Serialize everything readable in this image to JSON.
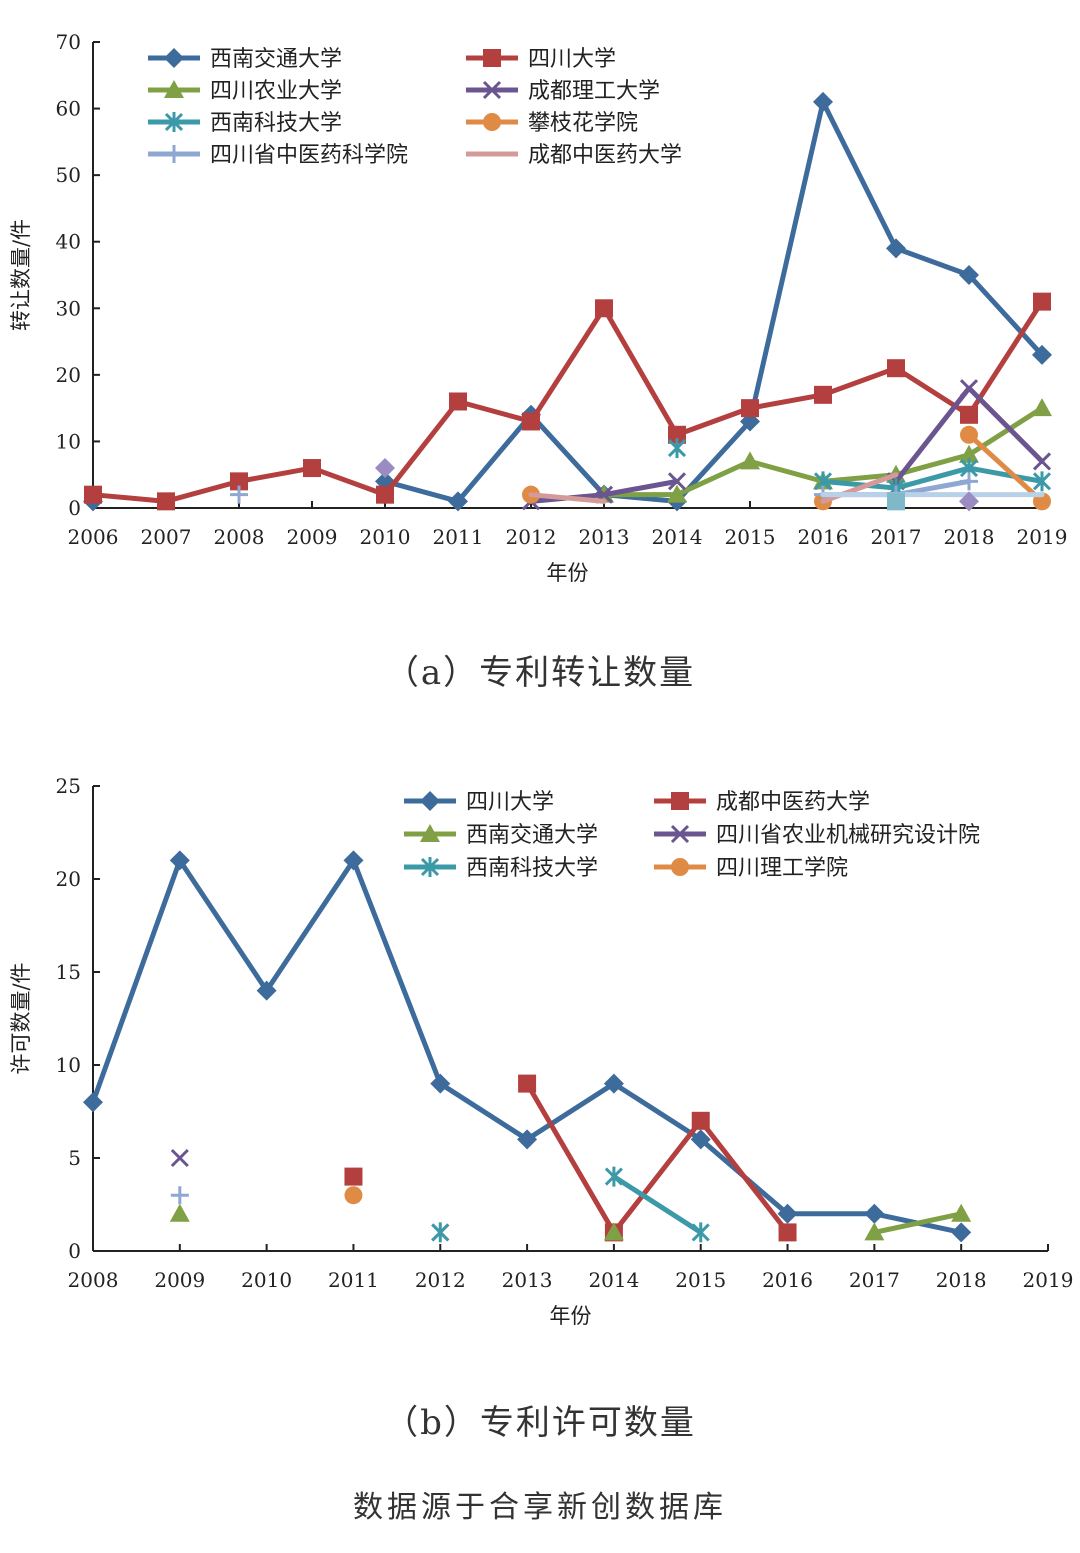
{
  "captions": {
    "a": "（a）专利转让数量",
    "b": "（b）专利许可数量",
    "source": "数据源于合享新创数据库"
  },
  "chart_data": [
    {
      "type": "line",
      "xlabel": "年份",
      "ylabel": "转让数量/件",
      "ylim": [
        0,
        70
      ],
      "yticks": [
        0,
        10,
        20,
        30,
        40,
        50,
        60,
        70
      ],
      "categories": [
        "2006",
        "2007",
        "2008",
        "2009",
        "2010",
        "2011",
        "2012",
        "2013",
        "2014",
        "2015",
        "2016",
        "2017",
        "2018",
        "2019"
      ],
      "legend_position": "top-left, two columns",
      "series": [
        {
          "name": "西南交通大学",
          "color": "#3d6b9c",
          "marker": "diamond",
          "values": [
            1,
            null,
            null,
            null,
            4,
            1,
            14,
            2,
            1,
            13,
            61,
            39,
            35,
            23
          ]
        },
        {
          "name": "四川大学",
          "color": "#b3403f",
          "marker": "square",
          "values": [
            2,
            1,
            4,
            6,
            2,
            16,
            13,
            30,
            11,
            15,
            17,
            21,
            14,
            31
          ]
        },
        {
          "name": "四川农业大学",
          "color": "#7fa045",
          "marker": "triangle",
          "values": [
            null,
            null,
            null,
            null,
            null,
            null,
            null,
            2,
            2,
            7,
            4,
            5,
            8,
            15
          ]
        },
        {
          "name": "成都理工大学",
          "color": "#6b5590",
          "marker": "x",
          "values": [
            null,
            null,
            null,
            null,
            null,
            null,
            1,
            2,
            4,
            null,
            null,
            4,
            18,
            7
          ]
        },
        {
          "name": "西南科技大学",
          "color": "#3c9aa8",
          "marker": "star",
          "values": [
            null,
            null,
            null,
            null,
            null,
            null,
            null,
            null,
            9,
            null,
            4,
            3,
            6,
            4
          ]
        },
        {
          "name": "攀枝花学院",
          "color": "#e08b45",
          "marker": "circle",
          "values": [
            null,
            null,
            null,
            null,
            null,
            null,
            2,
            null,
            null,
            null,
            1,
            null,
            11,
            1
          ]
        },
        {
          "name": "四川省中医药科学院",
          "color": "#8ea8d2",
          "marker": "plus",
          "values": [
            null,
            null,
            2,
            null,
            null,
            null,
            null,
            null,
            null,
            null,
            2,
            2,
            4,
            null
          ]
        },
        {
          "name": "成都中医药大学",
          "color": "#d49a9a",
          "marker": "none",
          "values": [
            null,
            null,
            null,
            null,
            null,
            null,
            2,
            1,
            null,
            null,
            1,
            5,
            null,
            null
          ]
        },
        {
          "name": "",
          "color": "#b8d0e8",
          "marker": "none",
          "values": [
            null,
            null,
            null,
            null,
            null,
            null,
            null,
            null,
            null,
            null,
            2,
            2,
            2,
            2
          ]
        },
        {
          "name": "",
          "color": "#9a8cc0",
          "marker": "diamond",
          "values": [
            null,
            null,
            null,
            null,
            6,
            null,
            null,
            null,
            null,
            null,
            null,
            null,
            1,
            null
          ]
        },
        {
          "name": "",
          "color": "#7fb8c8",
          "marker": "square",
          "values": [
            null,
            null,
            null,
            null,
            null,
            null,
            null,
            null,
            null,
            null,
            null,
            1,
            null,
            null
          ]
        }
      ]
    },
    {
      "type": "line",
      "xlabel": "年份",
      "ylabel": "许可数量/件",
      "ylim": [
        0,
        25
      ],
      "yticks": [
        0,
        5,
        10,
        15,
        20,
        25
      ],
      "categories": [
        "2008",
        "2009",
        "2010",
        "2011",
        "2012",
        "2013",
        "2014",
        "2015",
        "2016",
        "2017",
        "2018",
        "2019"
      ],
      "legend_position": "top-right, two columns",
      "series": [
        {
          "name": "四川大学",
          "color": "#3d6b9c",
          "marker": "diamond",
          "values": [
            8,
            21,
            14,
            21,
            9,
            6,
            9,
            6,
            2,
            2,
            1,
            null
          ]
        },
        {
          "name": "成都中医药大学",
          "color": "#b3403f",
          "marker": "square",
          "values": [
            null,
            null,
            null,
            4,
            null,
            9,
            1,
            7,
            1,
            null,
            null,
            null
          ]
        },
        {
          "name": "西南交通大学",
          "color": "#7fa045",
          "marker": "triangle",
          "values": [
            null,
            2,
            null,
            null,
            null,
            null,
            1,
            null,
            null,
            1,
            2,
            null
          ]
        },
        {
          "name": "四川省农业机械研究设计院",
          "color": "#6b5590",
          "marker": "x",
          "values": [
            null,
            5,
            null,
            null,
            1,
            null,
            null,
            null,
            null,
            null,
            null,
            null
          ]
        },
        {
          "name": "西南科技大学",
          "color": "#3c9aa8",
          "marker": "star",
          "values": [
            null,
            null,
            null,
            null,
            1,
            null,
            4,
            1,
            null,
            null,
            null,
            null
          ]
        },
        {
          "name": "四川理工学院",
          "color": "#e08b45",
          "marker": "circle",
          "values": [
            null,
            null,
            null,
            3,
            null,
            null,
            null,
            null,
            null,
            null,
            null,
            null
          ]
        },
        {
          "name": "",
          "color": "#8ea8d2",
          "marker": "plus",
          "values": [
            null,
            3,
            null,
            null,
            null,
            null,
            null,
            null,
            null,
            null,
            null,
            null
          ]
        }
      ]
    }
  ]
}
